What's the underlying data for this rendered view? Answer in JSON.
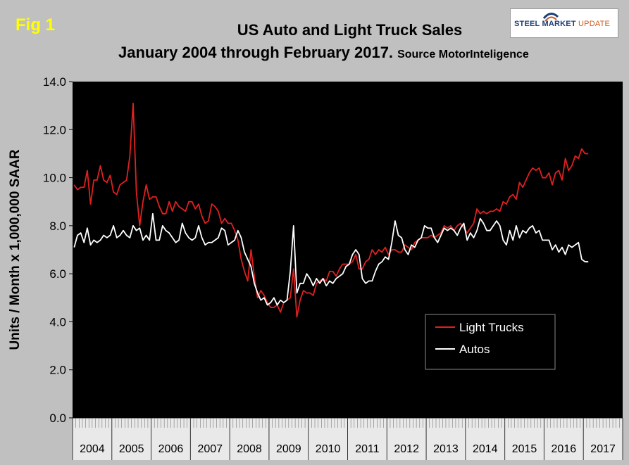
{
  "figure_label": "Fig 1",
  "title_line1": "US Auto and Light Truck Sales",
  "title_line2": "January 2004 through February 2017.",
  "source": "Source MotorInteligence",
  "logo": {
    "strong": "STEEL MARKET",
    "light": "UPDATE"
  },
  "colors": {
    "light_trucks": "#e02020",
    "autos": "#ffffff",
    "plot_bg": "#000000",
    "page_bg": "#c0c0c0"
  },
  "chart_data": {
    "type": "line",
    "ylabel": "Units / Month x 1,000,000 SAAR",
    "ylim": [
      0,
      14
    ],
    "yticks": [
      "0.0",
      "2.0",
      "4.0",
      "6.0",
      "8.0",
      "10.0",
      "12.0",
      "14.0"
    ],
    "years": [
      "2004",
      "2005",
      "2006",
      "2007",
      "2008",
      "2009",
      "2010",
      "2011",
      "2012",
      "2013",
      "2014",
      "2015",
      "2016",
      "2017"
    ],
    "x_start": "2004-01",
    "x_end": "2017-02",
    "legend_position": "lower-right",
    "series": [
      {
        "name": "Light Trucks",
        "values": [
          9.7,
          9.5,
          9.6,
          9.6,
          10.3,
          8.9,
          9.9,
          9.9,
          10.5,
          9.9,
          9.8,
          10.1,
          9.4,
          9.3,
          9.7,
          9.8,
          9.9,
          10.9,
          13.1,
          9.4,
          8.0,
          9.0,
          9.7,
          9.1,
          9.2,
          9.2,
          8.8,
          8.5,
          8.5,
          9.0,
          8.6,
          9.0,
          8.8,
          8.7,
          8.6,
          9.0,
          9.0,
          8.7,
          8.9,
          8.4,
          8.1,
          8.2,
          8.9,
          8.8,
          8.6,
          8.1,
          8.3,
          8.1,
          8.1,
          7.8,
          7.4,
          6.6,
          6.1,
          5.7,
          7.0,
          5.9,
          5.0,
          5.3,
          5.1,
          4.8,
          4.6,
          4.6,
          4.7,
          4.4,
          4.8,
          4.9,
          5.0,
          6.2,
          4.2,
          4.9,
          5.3,
          5.2,
          5.2,
          5.1,
          5.6,
          5.7,
          5.8,
          5.7,
          6.1,
          6.1,
          5.9,
          6.2,
          6.4,
          6.4,
          6.4,
          6.5,
          6.8,
          6.2,
          6.2,
          6.5,
          6.6,
          7.0,
          6.8,
          7.0,
          6.9,
          7.1,
          6.8,
          7.0,
          7.0,
          6.9,
          6.9,
          7.2,
          7.1,
          7.0,
          7.3,
          7.4,
          7.5,
          7.5,
          7.5,
          7.6,
          7.5,
          7.6,
          7.7,
          8.0,
          7.9,
          8.0,
          7.8,
          8.0,
          8.1,
          7.9,
          7.7,
          7.9,
          8.1,
          8.7,
          8.5,
          8.6,
          8.5,
          8.6,
          8.6,
          8.7,
          8.6,
          9.0,
          8.9,
          9.2,
          9.3,
          9.1,
          9.8,
          9.6,
          9.9,
          10.2,
          10.4,
          10.3,
          10.4,
          10.0,
          10.0,
          10.2,
          9.7,
          10.2,
          10.3,
          9.9,
          10.8,
          10.3,
          10.5,
          10.9,
          10.8,
          11.2,
          11.0,
          11.0
        ],
        "color": "#e02020"
      },
      {
        "name": "Autos",
        "values": [
          7.1,
          7.6,
          7.7,
          7.3,
          7.9,
          7.2,
          7.4,
          7.3,
          7.4,
          7.6,
          7.5,
          7.6,
          8.0,
          7.5,
          7.6,
          7.8,
          7.6,
          7.5,
          8.0,
          7.8,
          7.9,
          7.4,
          7.6,
          7.4,
          8.5,
          7.4,
          7.4,
          8.0,
          7.8,
          7.7,
          7.5,
          7.3,
          7.4,
          8.1,
          7.7,
          7.5,
          7.4,
          7.5,
          8.0,
          7.5,
          7.2,
          7.3,
          7.3,
          7.4,
          7.5,
          7.9,
          7.8,
          7.2,
          7.3,
          7.4,
          7.8,
          7.5,
          6.9,
          6.6,
          6.3,
          5.6,
          5.2,
          4.9,
          5.0,
          4.7,
          4.8,
          5.0,
          4.7,
          4.9,
          4.8,
          4.9,
          6.1,
          8.0,
          5.2,
          5.6,
          5.6,
          6.0,
          5.8,
          5.5,
          5.8,
          5.6,
          5.8,
          5.5,
          5.7,
          5.6,
          5.8,
          5.9,
          6.0,
          6.3,
          6.4,
          6.8,
          7.0,
          6.8,
          5.8,
          5.6,
          5.7,
          5.7,
          6.1,
          6.4,
          6.5,
          6.7,
          6.6,
          7.3,
          8.2,
          7.6,
          7.5,
          7.0,
          6.8,
          7.2,
          7.1,
          7.4,
          7.5,
          8.0,
          7.9,
          7.9,
          7.5,
          7.3,
          7.6,
          7.9,
          7.8,
          7.9,
          7.8,
          7.6,
          7.9,
          8.1,
          7.4,
          7.7,
          7.5,
          7.8,
          8.3,
          8.1,
          7.8,
          7.8,
          8.0,
          8.2,
          8.0,
          7.4,
          7.2,
          7.8,
          7.4,
          8.0,
          7.5,
          7.8,
          7.7,
          7.9,
          8.0,
          7.7,
          7.8,
          7.4,
          7.4,
          7.4,
          7.0,
          7.2,
          6.9,
          7.1,
          6.8,
          7.2,
          7.1,
          7.2,
          7.3,
          6.6,
          6.5,
          6.5
        ],
        "color": "#ffffff"
      }
    ]
  }
}
